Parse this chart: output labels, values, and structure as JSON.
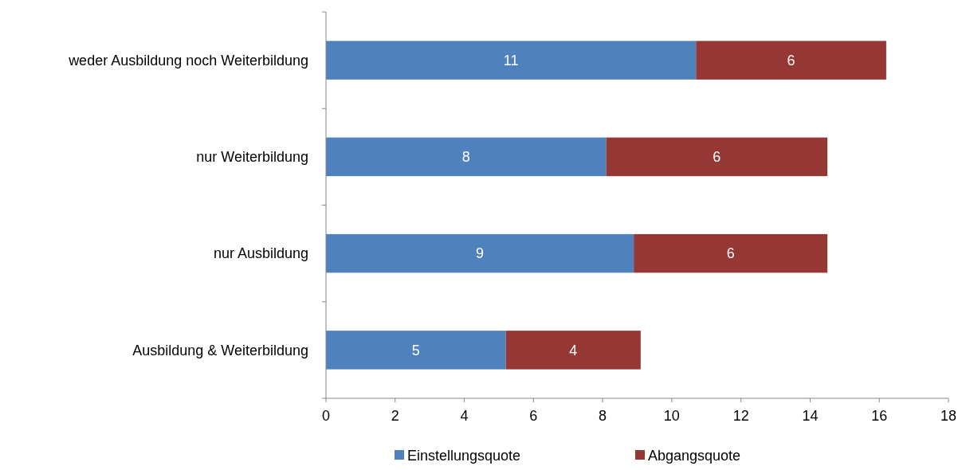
{
  "chart_data": {
    "type": "bar",
    "orientation": "horizontal",
    "stacked": true,
    "categories": [
      "weder Ausbildung noch Weiterbildung",
      "nur Weiterbildung",
      "nur Ausbildung",
      "Ausbildung & Weiterbildung"
    ],
    "series": [
      {
        "name": "Einstellungsquote",
        "color": "#4f81bd",
        "values": [
          10.7,
          8.1,
          8.9,
          5.2
        ],
        "value_labels": [
          "11",
          "8",
          "9",
          "5"
        ]
      },
      {
        "name": "Abgangsquote",
        "color": "#953735",
        "values": [
          5.5,
          6.4,
          5.6,
          3.9
        ],
        "value_labels": [
          "6",
          "6",
          "6",
          "4"
        ]
      }
    ],
    "xlim": [
      0,
      18
    ],
    "xticks": [
      0,
      2,
      4,
      6,
      8,
      10,
      12,
      14,
      16,
      18
    ],
    "legend": "bottom"
  }
}
